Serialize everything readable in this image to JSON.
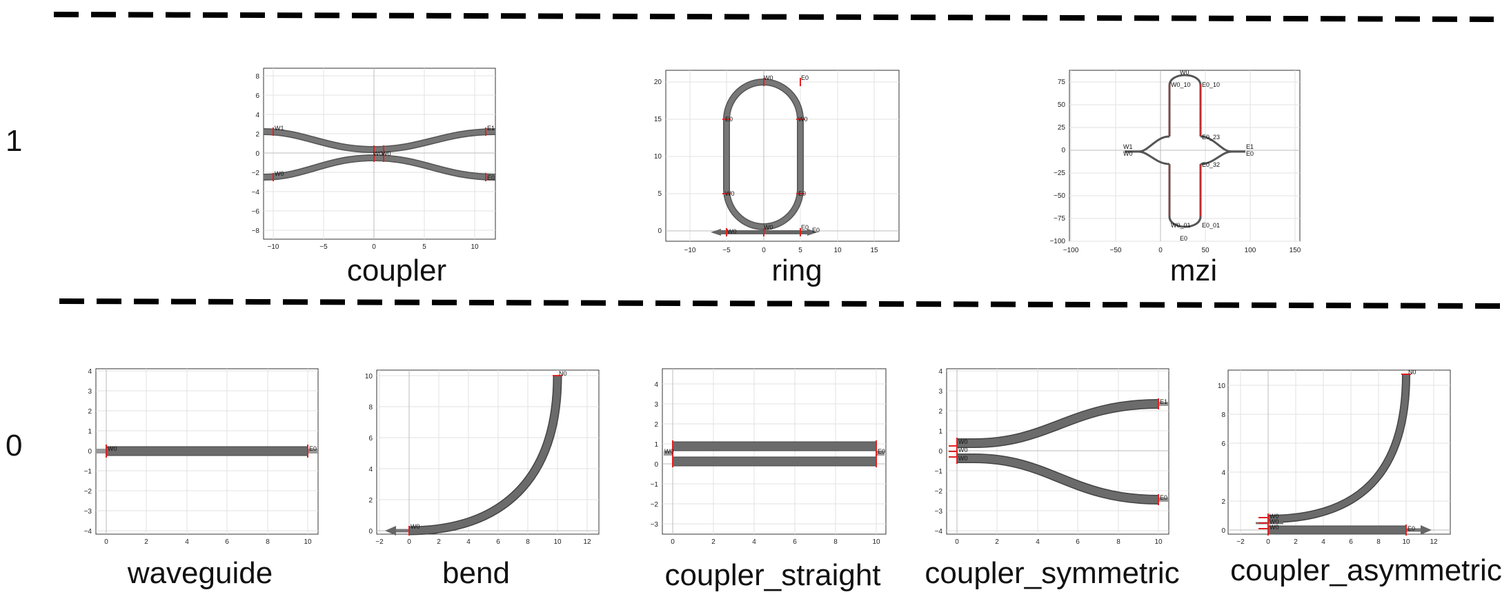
{
  "row_labels": [
    "1",
    "0"
  ],
  "components": [
    {
      "id": "coupler",
      "label": "coupler",
      "x_ticks": [
        "−10",
        "−5",
        "0",
        "5",
        "10"
      ],
      "y_ticks": [
        "8",
        "6",
        "4",
        "2",
        "0",
        "−2",
        "−4",
        "−6",
        "−8"
      ],
      "ports": [
        "W1",
        "E1",
        "W0",
        "E0",
        "W0",
        "W0"
      ]
    },
    {
      "id": "ring",
      "label": "ring",
      "x_ticks": [
        "−10",
        "−5",
        "0",
        "5",
        "10",
        "15"
      ],
      "y_ticks": [
        "20",
        "15",
        "10",
        "5",
        "0"
      ],
      "ports": [
        "W0",
        "E0",
        "E0",
        "W0",
        "W0",
        "E0",
        "W0",
        "E0",
        "W0",
        "E0"
      ]
    },
    {
      "id": "mzi",
      "label": "mzi",
      "x_ticks": [
        "−100",
        "−50",
        "0",
        "50",
        "100",
        "150"
      ],
      "y_ticks": [
        "75",
        "50",
        "25",
        "0",
        "−25",
        "−50",
        "−75",
        "−100"
      ],
      "ports": [
        "W1",
        "W0",
        "E1",
        "E0",
        "W0",
        "E0",
        "E0_10",
        "W0_10",
        "E0_23",
        "E0_32",
        "E0_01",
        "W0_01"
      ]
    },
    {
      "id": "waveguide",
      "label": "waveguide",
      "x_ticks": [
        "0",
        "2",
        "4",
        "6",
        "8",
        "10"
      ],
      "y_ticks": [
        "4",
        "3",
        "2",
        "1",
        "0",
        "−1",
        "−2",
        "−3",
        "−4"
      ],
      "ports": [
        "W0",
        "E0"
      ]
    },
    {
      "id": "bend",
      "label": "bend",
      "x_ticks": [
        "−2",
        "0",
        "2",
        "4",
        "6",
        "8",
        "10",
        "12"
      ],
      "y_ticks": [
        "10",
        "8",
        "6",
        "4",
        "2",
        "0"
      ],
      "ports": [
        "W0",
        "N0"
      ]
    },
    {
      "id": "coupler_straight",
      "label": "coupler_straight",
      "x_ticks": [
        "0",
        "2",
        "4",
        "6",
        "8",
        "10"
      ],
      "y_ticks": [
        "4",
        "3",
        "2",
        "1",
        "0",
        "−1",
        "−2",
        "−3"
      ],
      "ports": [
        "W0",
        "E0"
      ]
    },
    {
      "id": "coupler_symmetric",
      "label": "coupler_symmetric",
      "x_ticks": [
        "0",
        "2",
        "4",
        "6",
        "8",
        "10"
      ],
      "y_ticks": [
        "4",
        "3",
        "2",
        "1",
        "0",
        "−1",
        "−2",
        "−3",
        "−4"
      ],
      "ports": [
        "W0",
        "W0",
        "W0",
        "E1",
        "E0"
      ]
    },
    {
      "id": "coupler_asymmetric",
      "label": "coupler_asymmetric",
      "x_ticks": [
        "−2",
        "0",
        "2",
        "4",
        "6",
        "8",
        "10",
        "12"
      ],
      "y_ticks": [
        "10",
        "8",
        "6",
        "4",
        "2",
        "0"
      ],
      "ports": [
        "W0",
        "W0",
        "W0",
        "E0",
        "N0"
      ]
    }
  ],
  "colors": {
    "waveguide": "#6b6b6b",
    "port": "#e02020",
    "grid": "#dddddd",
    "divider": "#000000"
  }
}
